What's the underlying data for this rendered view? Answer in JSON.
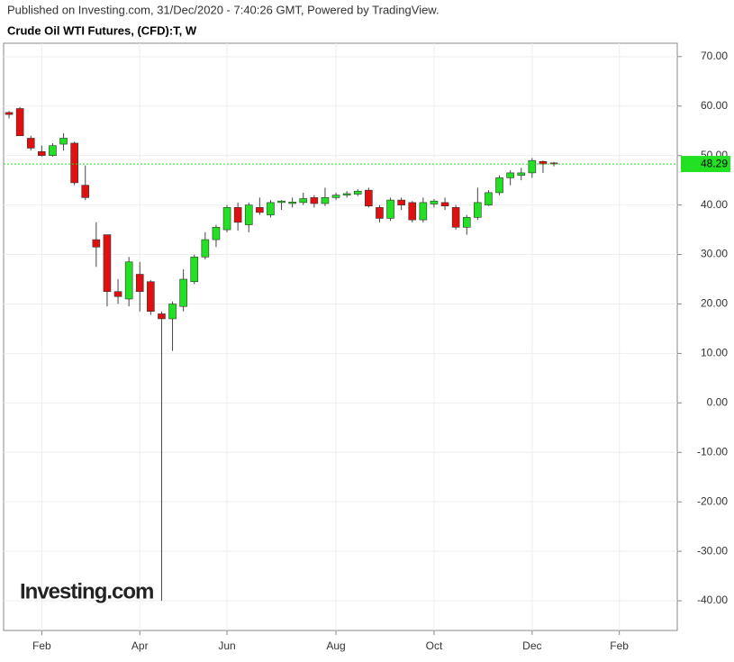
{
  "header": {
    "published": "Published on Investing.com, 31/Dec/2020 - 7:40:26 GMT, Powered by TradingView.",
    "title": "Crude Oil WTI Futures, (CFD):T, W"
  },
  "chart_data": {
    "type": "candlestick",
    "watermark": "Investing.com",
    "categories": [
      null,
      null,
      null,
      "Feb",
      null,
      null,
      null,
      null,
      null,
      null,
      null,
      null,
      "Apr",
      null,
      null,
      null,
      null,
      null,
      null,
      null,
      "Jun",
      null,
      null,
      null,
      null,
      null,
      null,
      null,
      null,
      null,
      "Aug",
      null,
      null,
      null,
      null,
      null,
      null,
      null,
      null,
      "Oct",
      null,
      null,
      null,
      null,
      null,
      null,
      null,
      null,
      "Dec",
      null,
      null,
      null,
      null,
      null,
      null,
      null,
      "Feb",
      null,
      null,
      null,
      null
    ],
    "open": [
      58.7,
      59.5,
      53.5,
      50.8,
      50,
      52.3,
      52.5,
      44,
      33,
      34,
      22.5,
      21,
      26,
      24.5,
      18,
      17,
      19.5,
      24.5,
      29.5,
      33,
      35,
      39.5,
      36,
      39.5,
      38,
      40.5,
      40.3,
      40.5,
      41.5,
      40.3,
      41.5,
      42,
      42.2,
      43,
      39.5,
      37.3,
      41,
      40.5,
      37,
      40.2,
      40.5,
      39.5,
      35.5,
      37.5,
      40,
      42.5,
      45.5,
      46,
      46.5,
      48.8,
      48.5,
      null,
      null,
      null,
      null,
      null,
      null,
      null,
      null,
      null,
      null
    ],
    "high": [
      59,
      59.8,
      54,
      52,
      52.5,
      54.5,
      52.8,
      48,
      36.5,
      34,
      25,
      29.5,
      28.5,
      24.8,
      18.5,
      20.5,
      27,
      30,
      34.5,
      36,
      40,
      40.5,
      40.5,
      41.5,
      41,
      41,
      41.5,
      42.5,
      42,
      43.5,
      42.5,
      42.8,
      43.2,
      43.5,
      40,
      41.5,
      41.5,
      40.8,
      41.5,
      41.2,
      41.5,
      40,
      38,
      43.5,
      43,
      46,
      47,
      47.5,
      49.5,
      49,
      48.7,
      null,
      null,
      null,
      null,
      null,
      null,
      null,
      null,
      null,
      null
    ],
    "low": [
      57.5,
      54,
      51,
      49.8,
      49.8,
      51,
      44,
      41,
      27.5,
      19.5,
      20,
      19.5,
      18.5,
      17.8,
      -40,
      10.5,
      18.5,
      24,
      29,
      31.5,
      34.5,
      34.8,
      34.5,
      38,
      37.5,
      39,
      39.5,
      40,
      39.5,
      39.8,
      41,
      41.5,
      41.8,
      39.5,
      36.5,
      36.8,
      39,
      36.5,
      36.5,
      39.5,
      39,
      35,
      34,
      37,
      39.8,
      42,
      44,
      45,
      45.5,
      46.5,
      47.8,
      null,
      null,
      null,
      null,
      null,
      null,
      null,
      null,
      null,
      null
    ],
    "close": [
      58.3,
      54,
      51.5,
      50,
      52,
      53.5,
      44.5,
      41.5,
      31.5,
      22.5,
      21.5,
      28.5,
      22.5,
      18.5,
      17,
      20,
      25,
      29.5,
      33,
      35.5,
      39.5,
      36.5,
      40,
      38.5,
      40.5,
      40.8,
      40.6,
      41.3,
      40.3,
      41.5,
      42,
      42.3,
      42.8,
      39.8,
      37.3,
      41,
      40,
      37,
      40.5,
      40.8,
      39.8,
      35.5,
      37.5,
      40.5,
      42.5,
      45.5,
      46.5,
      46.5,
      49,
      48.3,
      48.3,
      null,
      null,
      null,
      null,
      null,
      null,
      null,
      null,
      null,
      null
    ],
    "up_color": "#22e022",
    "down_color": "#e01010",
    "last_price": 48.29,
    "last_price_color": "#22e022",
    "ylim": [
      -46,
      72.7
    ],
    "yticks": [
      {
        "value": 70,
        "label": "70.00"
      },
      {
        "value": 60,
        "label": "60.00"
      },
      {
        "value": 50,
        "label": "50.00"
      },
      {
        "value": 40,
        "label": "40.00"
      },
      {
        "value": 30,
        "label": "30.00"
      },
      {
        "value": 20,
        "label": "20.00"
      },
      {
        "value": 10,
        "label": "10.00"
      },
      {
        "value": 0,
        "label": "0.00"
      },
      {
        "value": -10,
        "label": "-10.00"
      },
      {
        "value": -20,
        "label": "-20.00"
      },
      {
        "value": -30,
        "label": "-30.00"
      },
      {
        "value": -40,
        "label": "-40.00"
      }
    ],
    "grid": true
  }
}
